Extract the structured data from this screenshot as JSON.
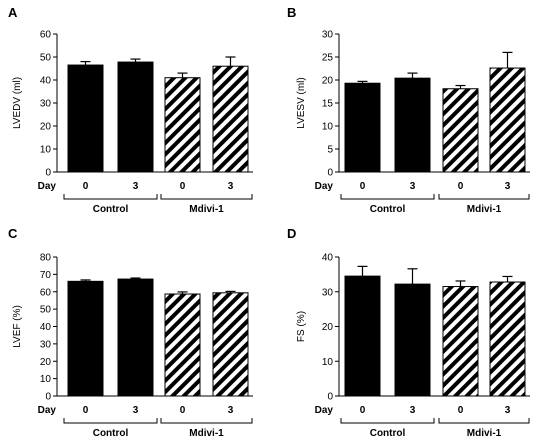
{
  "chart_data": [
    {
      "panel": "A",
      "type": "bar",
      "ylabel": "LVEDV (ml)",
      "ylim": [
        0,
        60
      ],
      "yticks": [
        "0",
        "10",
        "20",
        "30",
        "40",
        "50",
        "60"
      ],
      "row_label": "Day",
      "categories": [
        "0",
        "3",
        "0",
        "3"
      ],
      "groups": [
        {
          "label": "Control",
          "bars": [
            0,
            1
          ]
        },
        {
          "label": "Mdivi-1",
          "bars": [
            2,
            3
          ]
        }
      ],
      "fills": [
        "solid",
        "solid",
        "hatched",
        "hatched"
      ],
      "values": [
        46.5,
        47.8,
        41,
        46
      ],
      "errors": [
        1.5,
        1.3,
        2,
        4
      ]
    },
    {
      "panel": "B",
      "type": "bar",
      "ylabel": "LVESV (ml)",
      "ylim": [
        0,
        30
      ],
      "yticks": [
        "0",
        "5",
        "10",
        "15",
        "20",
        "25",
        "30"
      ],
      "row_label": "Day",
      "categories": [
        "0",
        "3",
        "0",
        "3"
      ],
      "groups": [
        {
          "label": "Control",
          "bars": [
            0,
            1
          ]
        },
        {
          "label": "Mdivi-1",
          "bars": [
            2,
            3
          ]
        }
      ],
      "fills": [
        "solid",
        "solid",
        "hatched",
        "hatched"
      ],
      "values": [
        19.3,
        20.4,
        18.1,
        22.6
      ],
      "errors": [
        0.4,
        1.1,
        0.7,
        3.4
      ]
    },
    {
      "panel": "C",
      "type": "bar",
      "ylabel": "LVEF (%)",
      "ylim": [
        0,
        80
      ],
      "yticks": [
        "0",
        "10",
        "20",
        "30",
        "40",
        "50",
        "60",
        "70",
        "80"
      ],
      "row_label": "Day",
      "categories": [
        "0",
        "3",
        "0",
        "3"
      ],
      "groups": [
        {
          "label": "Control",
          "bars": [
            0,
            1
          ]
        },
        {
          "label": "Mdivi-1",
          "bars": [
            2,
            3
          ]
        }
      ],
      "fills": [
        "solid",
        "solid",
        "hatched",
        "hatched"
      ],
      "values": [
        66,
        67.3,
        58.7,
        59.4
      ],
      "errors": [
        0.8,
        0.6,
        1.2,
        0.8
      ]
    },
    {
      "panel": "D",
      "type": "bar",
      "ylabel": "FS (%)",
      "ylim": [
        0,
        40
      ],
      "yticks": [
        "0",
        "10",
        "20",
        "30",
        "40"
      ],
      "row_label": "Day",
      "categories": [
        "0",
        "3",
        "0",
        "3"
      ],
      "groups": [
        {
          "label": "Control",
          "bars": [
            0,
            1
          ]
        },
        {
          "label": "Mdivi-1",
          "bars": [
            2,
            3
          ]
        }
      ],
      "fills": [
        "solid",
        "solid",
        "hatched",
        "hatched"
      ],
      "values": [
        34.5,
        32.2,
        31.5,
        32.8
      ],
      "errors": [
        2.8,
        4.4,
        1.6,
        1.6
      ]
    }
  ]
}
